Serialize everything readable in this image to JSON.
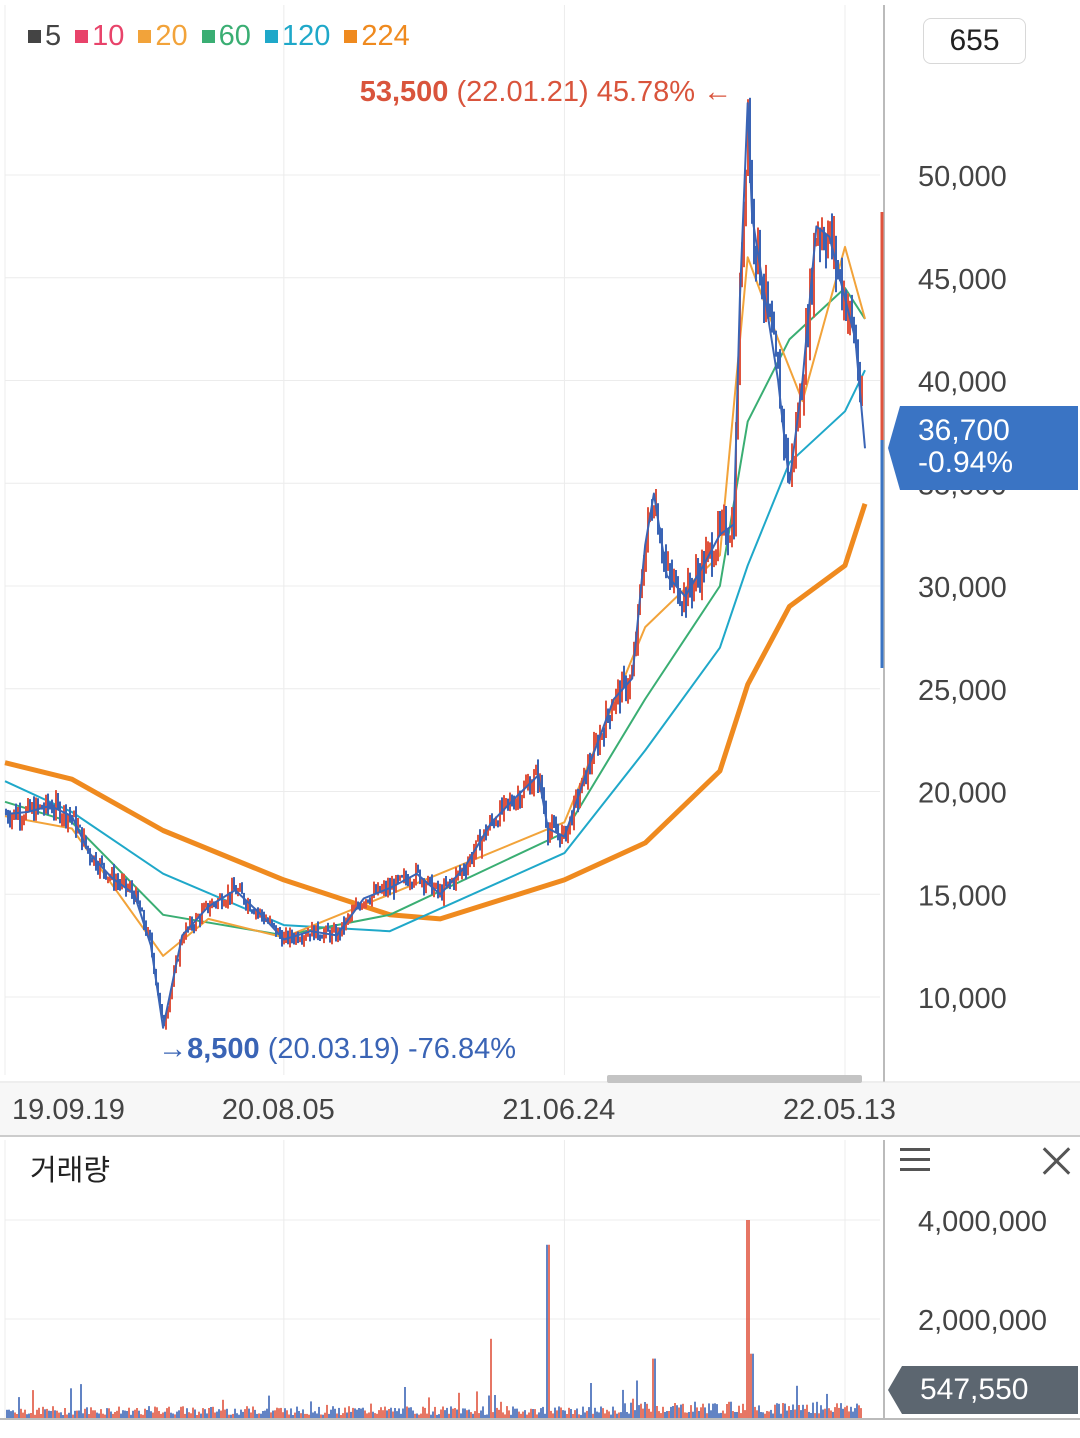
{
  "legend": [
    {
      "label": "5",
      "color": "#444444"
    },
    {
      "label": "10",
      "color": "#e8436a"
    },
    {
      "label": "20",
      "color": "#f2a33a"
    },
    {
      "label": "60",
      "color": "#3aae73"
    },
    {
      "label": "120",
      "color": "#1fa8c9"
    },
    {
      "label": "224",
      "color": "#ef8a1f"
    }
  ],
  "count_box": "655",
  "high_note": {
    "value": "53,500",
    "date": "(22.01.21)",
    "pct": "45.78%",
    "arrow": "←"
  },
  "low_note": {
    "arrow": "→",
    "value": "8,500",
    "date": "(20.03.19)",
    "pct": "-76.84%"
  },
  "current": {
    "price": "36,700",
    "change": "-0.94%"
  },
  "volume_panel": {
    "title": "거래량",
    "current": "547,550"
  },
  "chart_data": {
    "type": "line",
    "price_axis": {
      "ticks": [
        "10,000",
        "15,000",
        "20,000",
        "25,000",
        "30,000",
        "35,000",
        "40,000",
        "45,000",
        "50,000"
      ],
      "ylim": [
        5000,
        60000
      ]
    },
    "x_ticks": [
      "19.09.19",
      "20.08.05",
      "21.06.24",
      "22.05.13"
    ],
    "close": [
      [
        "19.09.19",
        18900
      ],
      [
        "19.10.15",
        19000
      ],
      [
        "19.11.10",
        19300
      ],
      [
        "19.12.05",
        18800
      ],
      [
        "19.12.25",
        17000
      ],
      [
        "20.01.20",
        15800
      ],
      [
        "20.02.15",
        15000
      ],
      [
        "20.03.05",
        12500
      ],
      [
        "20.03.19",
        8500
      ],
      [
        "20.04.10",
        13000
      ],
      [
        "20.05.10",
        14400
      ],
      [
        "20.06.10",
        15200
      ],
      [
        "20.07.10",
        14000
      ],
      [
        "20.08.05",
        12800
      ],
      [
        "20.09.05",
        13200
      ],
      [
        "20.10.05",
        13000
      ],
      [
        "20.11.05",
        14800
      ],
      [
        "20.12.05",
        15300
      ],
      [
        "21.01.05",
        16000
      ],
      [
        "21.02.01",
        15000
      ],
      [
        "21.03.01",
        16300
      ],
      [
        "21.04.01",
        18500
      ],
      [
        "21.05.01",
        19800
      ],
      [
        "21.05.25",
        20800
      ],
      [
        "21.06.05",
        18200
      ],
      [
        "21.06.24",
        17800
      ],
      [
        "21.07.20",
        21000
      ],
      [
        "21.08.20",
        24500
      ],
      [
        "21.09.10",
        25500
      ],
      [
        "21.09.25",
        32000
      ],
      [
        "21.10.05",
        34500
      ],
      [
        "21.10.20",
        30500
      ],
      [
        "21.11.10",
        29500
      ],
      [
        "21.12.01",
        31000
      ],
      [
        "21.12.20",
        32500
      ],
      [
        "22.01.05",
        33000
      ],
      [
        "22.01.12",
        44000
      ],
      [
        "22.01.21",
        53500
      ],
      [
        "22.01.26",
        48000
      ],
      [
        "22.02.10",
        44000
      ],
      [
        "22.02.25",
        40000
      ],
      [
        "22.03.10",
        35000
      ],
      [
        "22.03.25",
        40000
      ],
      [
        "22.04.10",
        47500
      ],
      [
        "22.04.25",
        47000
      ],
      [
        "22.05.13",
        44000
      ],
      [
        "22.05.25",
        42000
      ],
      [
        "22.06.05",
        36700
      ]
    ],
    "ma_224": [
      [
        "19.09.19",
        21400
      ],
      [
        "19.12.05",
        20600
      ],
      [
        "20.03.19",
        18100
      ],
      [
        "20.08.05",
        15700
      ],
      [
        "20.12.05",
        14000
      ],
      [
        "21.02.01",
        13800
      ],
      [
        "21.06.24",
        15700
      ],
      [
        "21.09.25",
        17500
      ],
      [
        "21.12.20",
        21000
      ],
      [
        "22.01.21",
        25200
      ],
      [
        "22.03.10",
        29000
      ],
      [
        "22.05.13",
        31000
      ],
      [
        "22.06.05",
        34000
      ]
    ],
    "ma_120": [
      [
        "19.09.19",
        20500
      ],
      [
        "19.12.05",
        19000
      ],
      [
        "20.03.19",
        16000
      ],
      [
        "20.08.05",
        13500
      ],
      [
        "20.12.05",
        13200
      ],
      [
        "21.06.24",
        17000
      ],
      [
        "21.09.25",
        22000
      ],
      [
        "21.12.20",
        27000
      ],
      [
        "22.01.21",
        31000
      ],
      [
        "22.03.10",
        36000
      ],
      [
        "22.05.13",
        38500
      ],
      [
        "22.06.05",
        40500
      ]
    ],
    "ma_60": [
      [
        "19.09.19",
        19500
      ],
      [
        "19.12.05",
        18500
      ],
      [
        "20.03.19",
        14000
      ],
      [
        "20.08.05",
        13000
      ],
      [
        "20.12.05",
        14000
      ],
      [
        "21.06.24",
        18000
      ],
      [
        "21.09.25",
        24500
      ],
      [
        "21.12.20",
        30000
      ],
      [
        "22.01.21",
        38000
      ],
      [
        "22.03.10",
        42000
      ],
      [
        "22.05.13",
        44500
      ],
      [
        "22.06.05",
        43000
      ]
    ],
    "ma_20": [
      [
        "19.09.19",
        18800
      ],
      [
        "19.12.05",
        18200
      ],
      [
        "20.03.19",
        12000
      ],
      [
        "20.05.10",
        13800
      ],
      [
        "20.08.05",
        12900
      ],
      [
        "20.12.05",
        15000
      ],
      [
        "21.06.24",
        18500
      ],
      [
        "21.09.25",
        28000
      ],
      [
        "21.12.20",
        31500
      ],
      [
        "22.01.21",
        46000
      ],
      [
        "22.02.25",
        42000
      ],
      [
        "22.03.25",
        39000
      ],
      [
        "22.05.13",
        46500
      ],
      [
        "22.06.05",
        43000
      ]
    ],
    "volume": {
      "ticks": [
        "2,000,000",
        "4,000,000"
      ],
      "ylim": [
        0,
        4000000
      ],
      "spikes": [
        [
          "21.04.01",
          1600000
        ],
        [
          "21.06.05",
          3500000
        ],
        [
          "21.10.05",
          1200000
        ],
        [
          "22.01.21",
          4000000
        ],
        [
          "22.01.26",
          1300000
        ],
        [
          "22.06.05",
          547550
        ]
      ]
    }
  }
}
